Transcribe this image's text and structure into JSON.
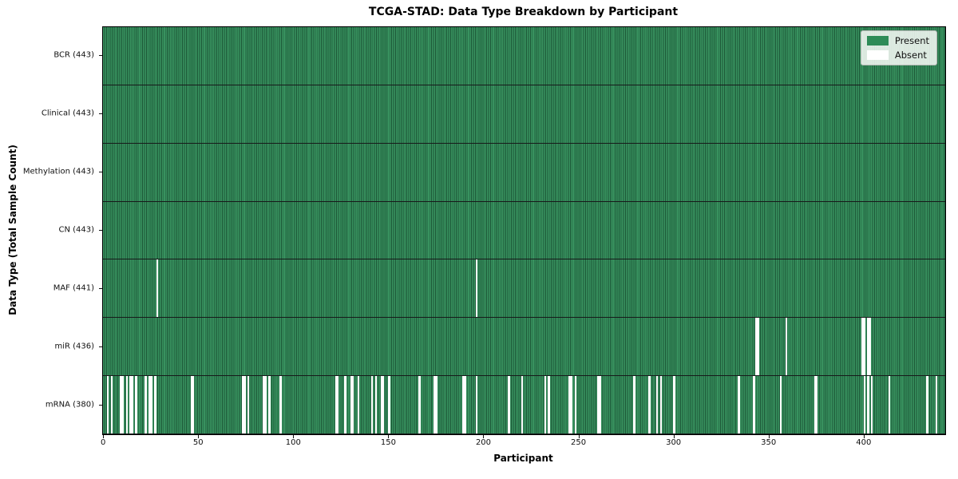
{
  "chart_data": {
    "type": "heatmap",
    "title": "TCGA-STAD: Data Type Breakdown by Participant",
    "xlabel": "Participant",
    "ylabel": "Data Type (Total Sample Count)",
    "n_participants": 443,
    "x_ticks": [
      0,
      50,
      100,
      150,
      200,
      250,
      300,
      350,
      400
    ],
    "present_color": "#2e8b57",
    "absent_color": "#ffffff",
    "legend": [
      {
        "label": "Present",
        "color": "#2e8b57"
      },
      {
        "label": "Absent",
        "color": "#ffffff"
      }
    ],
    "legend_position": "upper right",
    "rows": [
      {
        "label": "BCR (443)",
        "data_type": "BCR",
        "present_count": 443,
        "absent_participants": []
      },
      {
        "label": "Clinical (443)",
        "data_type": "Clinical",
        "present_count": 443,
        "absent_participants": []
      },
      {
        "label": "Methylation (443)",
        "data_type": "Methylation",
        "present_count": 443,
        "absent_participants": []
      },
      {
        "label": "CN (443)",
        "data_type": "CN",
        "present_count": 443,
        "absent_participants": []
      },
      {
        "label": "MAF (441)",
        "data_type": "MAF",
        "present_count": 441,
        "absent_participants": [
          28,
          196
        ]
      },
      {
        "label": "miR (436)",
        "data_type": "miR",
        "present_count": 436,
        "absent_participants": [
          343,
          344,
          359,
          399,
          400,
          402,
          403
        ]
      },
      {
        "label": "mRNA (380)",
        "data_type": "mRNA",
        "present_count": 380,
        "absent_participants": [
          2,
          4,
          9,
          10,
          12,
          14,
          15,
          17,
          22,
          24,
          25,
          27,
          46,
          47,
          73,
          74,
          76,
          84,
          85,
          87,
          93,
          122,
          123,
          127,
          130,
          131,
          134,
          141,
          143,
          146,
          147,
          150,
          166,
          174,
          175,
          189,
          190,
          196,
          213,
          220,
          232,
          234,
          245,
          246,
          248,
          260,
          261,
          279,
          287,
          291,
          293,
          300,
          334,
          342,
          356,
          374,
          375,
          400,
          402,
          404,
          413,
          433,
          438
        ]
      }
    ]
  }
}
